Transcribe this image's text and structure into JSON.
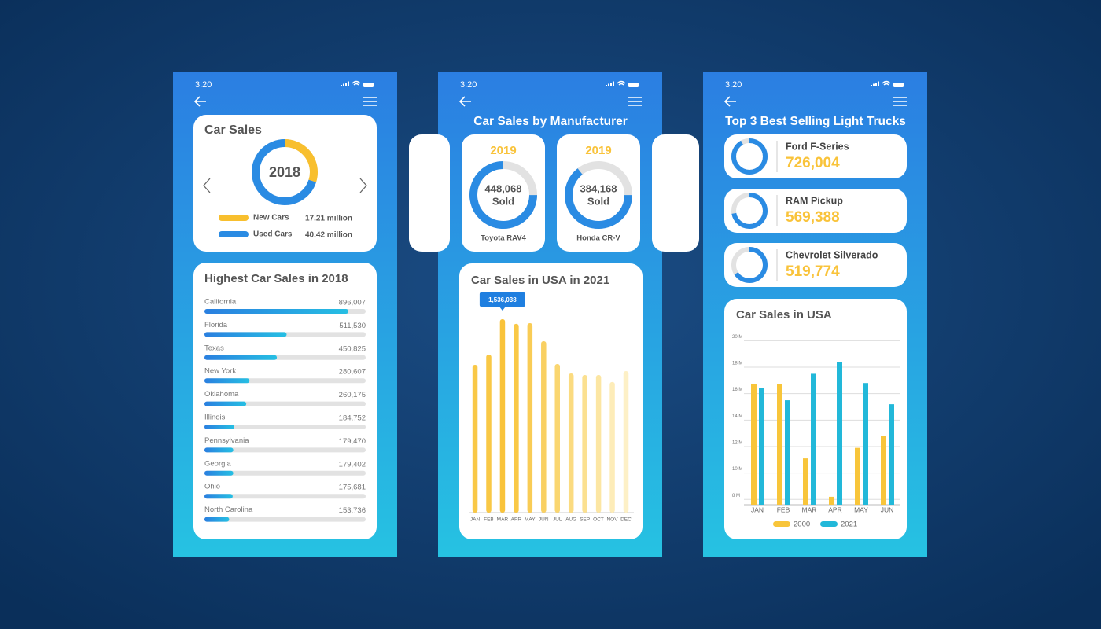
{
  "screens": [
    {
      "time": "3:20",
      "charts": [
        {
          "type": "donut",
          "title": "Car Sales",
          "center_label": "2018",
          "categories": [
            "New Cars",
            "Used Cars"
          ],
          "values": [
            17.21,
            40.42
          ],
          "value_labels": [
            "17.21 million",
            "40.42 million"
          ],
          "colors": [
            "#f8bf2e",
            "#2a8be3"
          ]
        },
        {
          "type": "hbar",
          "title": "Highest Car Sales in 2018",
          "categories": [
            "California",
            "Florida",
            "Texas",
            "New York",
            "Oklahoma",
            "Illinois",
            "Pennsylvania",
            "Georgia",
            "Ohio",
            "North Carolina"
          ],
          "values": [
            896007,
            511530,
            450825,
            280607,
            260175,
            184752,
            179470,
            179402,
            175681,
            153736
          ],
          "value_labels": [
            "896,007",
            "511,530",
            "450,825",
            "280,607",
            "260,175",
            "184,752",
            "179,470",
            "179,402",
            "175,681",
            "153,736"
          ],
          "color": "#2a8be3"
        }
      ]
    },
    {
      "time": "3:20",
      "title": "Car Sales by Manufacturer",
      "cards": [
        {
          "year": "2019",
          "value": 448068,
          "value_label": "448,068",
          "unit": "Sold",
          "name": "Toyota RAV4"
        },
        {
          "year": "2019",
          "value": 384168,
          "value_label": "384,168",
          "unit": "Sold",
          "name": "Honda CR-V"
        }
      ],
      "charts": [
        {
          "type": "bar",
          "title": "Car Sales in USA in 2021",
          "categories": [
            "JAN",
            "FEB",
            "MAR",
            "APR",
            "MAY",
            "JUN",
            "JUL",
            "AUG",
            "SEP",
            "OCT",
            "NOV",
            "DEC"
          ],
          "values": [
            1174000,
            1255000,
            1536038,
            1499000,
            1505000,
            1361000,
            1180000,
            1105000,
            1093000,
            1093000,
            1037000,
            1124000
          ],
          "value_labels": [
            null,
            null,
            "1,536,038",
            null,
            null,
            null,
            null,
            null,
            null,
            null,
            null,
            null
          ],
          "colors": [
            "#f9c846",
            "#f9c846",
            "#f9c33a",
            "#f9c846",
            "#f9cc55",
            "#f9d062",
            "#fad670",
            "#fbdb80",
            "#fbe090",
            "#fce6a3",
            "#fdecb8",
            "#fdf0c6"
          ]
        }
      ]
    },
    {
      "time": "3:20",
      "title": "Top 3 Best Selling Light Trucks",
      "trucks": [
        {
          "name": "Ford F-Series",
          "value": 726004,
          "value_label": "726,004"
        },
        {
          "name": "RAM Pickup",
          "value": 569388,
          "value_label": "569,388"
        },
        {
          "name": "Chevrolet Silverado",
          "value": 519774,
          "value_label": "519,774"
        }
      ],
      "charts": [
        {
          "type": "grouped_bar",
          "title": "Car Sales in USA",
          "categories": [
            "JAN",
            "FEB",
            "MAR",
            "APR",
            "MAY",
            "JUN"
          ],
          "series": [
            {
              "name": "2000",
              "color": "#f8c53a",
              "values": [
                16.7,
                16.7,
                11.1,
                8.2,
                11.9,
                12.8
              ]
            },
            {
              "name": "2021",
              "color": "#22b8d9",
              "values": [
                16.4,
                15.5,
                17.5,
                18.4,
                16.8,
                15.2
              ]
            }
          ],
          "ylim": [
            7.6,
            20.2
          ],
          "yticks": [
            {
              "value": 8,
              "label": "8 M"
            },
            {
              "value": 10,
              "label": "10 M"
            },
            {
              "value": 12,
              "label": "12 M"
            },
            {
              "value": 14,
              "label": "14 M"
            },
            {
              "value": 16,
              "label": "16 M"
            },
            {
              "value": 18,
              "label": "18 M"
            },
            {
              "value": 20,
              "label": "20 M"
            }
          ]
        }
      ]
    }
  ]
}
